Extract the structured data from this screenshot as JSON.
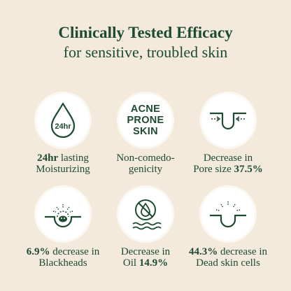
{
  "header": {
    "title": "Clinically Tested Efficacy",
    "subtitle": "for sensitive, troubled skin"
  },
  "colors": {
    "background": "#f3eadc",
    "primary_green": "#1e4a32",
    "circle_fill": "#ffffff"
  },
  "items": [
    {
      "icon": "water-drop-24hr-icon",
      "icon_text": "24hr",
      "line1_bold": "24hr",
      "line1_rest": " lasting",
      "line2": "Moisturizing"
    },
    {
      "icon": "acne-prone-skin-text-icon",
      "icon_lines": [
        "ACNE",
        "PRONE",
        "SKIN"
      ],
      "line1": "Non-comedo-",
      "line2": "genicity"
    },
    {
      "icon": "pore-shrink-icon",
      "line1": "Decrease in",
      "line2_rest": "Pore size ",
      "line2_bold": "37.5%"
    },
    {
      "icon": "blackhead-pore-icon",
      "line1_bold": "6.9%",
      "line1_rest": " decrease in",
      "line2": "Blackheads"
    },
    {
      "icon": "no-oil-drop-icon",
      "line1": "Decrease in",
      "line2_rest": "Oil ",
      "line2_bold": "14.9%"
    },
    {
      "icon": "dead-skin-cells-icon",
      "line1_bold": "44.3%",
      "line1_rest": " decrease in",
      "line2": "Dead skin cells"
    }
  ]
}
